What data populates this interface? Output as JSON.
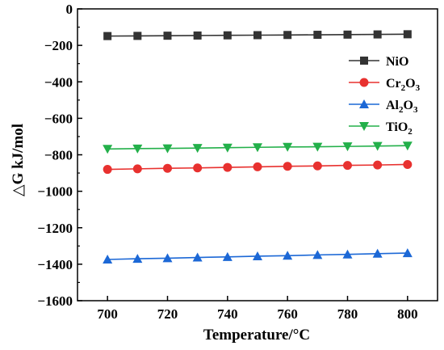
{
  "chart_data": {
    "type": "line",
    "title": "",
    "xlabel": "Temperature/°C",
    "ylabel": "△G kJ/mol",
    "xlim": [
      690,
      810
    ],
    "ylim": [
      -1600,
      0
    ],
    "xticks": [
      700,
      720,
      740,
      760,
      780,
      800
    ],
    "yticks": [
      0,
      -200,
      -400,
      -600,
      -800,
      -1000,
      -1200,
      -1400,
      -1600
    ],
    "x": [
      700,
      710,
      720,
      730,
      740,
      750,
      760,
      770,
      780,
      790,
      800
    ],
    "grid": false,
    "legend_position": "top-right",
    "series": [
      {
        "name": "NiO",
        "legend_main": "NiO",
        "legend_sub": "",
        "legend_tail": "",
        "legend_sub2": "",
        "color": "#333333",
        "marker": "square",
        "values": [
          -149,
          -148,
          -147,
          -146,
          -145,
          -144,
          -143,
          -142,
          -141,
          -140,
          -139
        ]
      },
      {
        "name": "Cr2O3",
        "legend_main": "Cr",
        "legend_sub": "2",
        "legend_tail": "O",
        "legend_sub2": "3",
        "color": "#e8312f",
        "marker": "circle",
        "values": [
          -880,
          -877,
          -874,
          -872,
          -869,
          -866,
          -863,
          -861,
          -858,
          -856,
          -853
        ]
      },
      {
        "name": "Al2O3",
        "legend_main": "Al",
        "legend_sub": "2",
        "legend_tail": "O",
        "legend_sub2": "3",
        "color": "#1c68d6",
        "marker": "triangle-up",
        "values": [
          -1374,
          -1370,
          -1367,
          -1363,
          -1360,
          -1356,
          -1353,
          -1349,
          -1346,
          -1342,
          -1339
        ]
      },
      {
        "name": "TiO2",
        "legend_main": "TiO",
        "legend_sub": "2",
        "legend_tail": "",
        "legend_sub2": "",
        "color": "#23b04a",
        "marker": "triangle-down",
        "values": [
          -768,
          -766,
          -765,
          -763,
          -761,
          -759,
          -757,
          -756,
          -754,
          -752,
          -750
        ]
      }
    ]
  }
}
